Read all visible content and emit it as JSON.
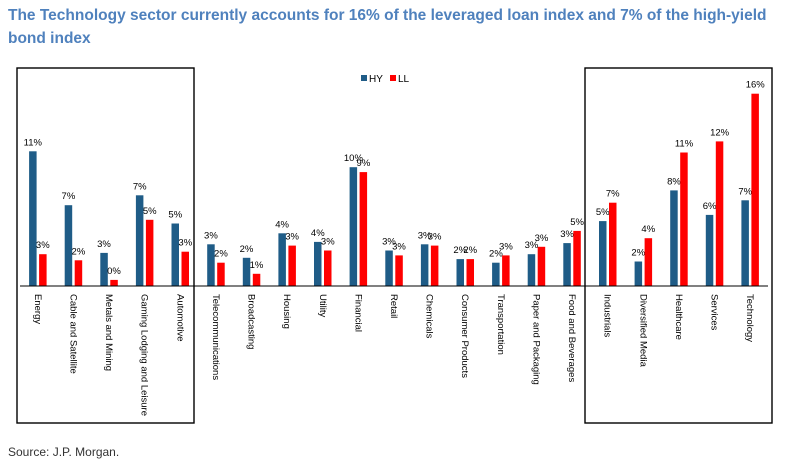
{
  "title": "The Technology sector currently accounts for 16% of the leveraged loan index and 7% of the high-yield bond index",
  "source": "Source: J.P. Morgan.",
  "colors": {
    "HY": "#1F5C87",
    "LL": "#FF0000",
    "title": "#4F81BD"
  },
  "chart_data": {
    "type": "bar",
    "title": "",
    "xlabel": "",
    "ylabel": "",
    "legend_position": "top-center",
    "grid": false,
    "categories": [
      "Energy",
      "Cable and Satellite",
      "Metals and Mining",
      "Gaming Lodging and Leisure",
      "Automotive",
      "Telecommunications",
      "Broadcasting",
      "Housing",
      "Utility",
      "Financial",
      "Retail",
      "Chemicals",
      "Consumer Products",
      "Transportation",
      "Paper and Packaging",
      "Food and Beverages",
      "Industrials",
      "Diversified Media",
      "Healthcare",
      "Services",
      "Technology"
    ],
    "series": [
      {
        "name": "HY",
        "values": [
          11,
          6.6,
          2.7,
          7.4,
          5.1,
          3.4,
          2.3,
          4.3,
          3.6,
          9.7,
          2.9,
          3.4,
          2.2,
          1.9,
          2.6,
          3.5,
          5.3,
          2.0,
          7.8,
          5.8,
          7.0
        ],
        "labels": [
          "11%",
          "7%",
          "3%",
          "7%",
          "5%",
          "3%",
          "2%",
          "4%",
          "4%",
          "10%",
          "3%",
          "3%",
          "2%",
          "2%",
          "3%",
          "3%",
          "5%",
          "2%",
          "8%",
          "6%",
          "7%"
        ]
      },
      {
        "name": "LL",
        "values": [
          2.6,
          2.1,
          0.5,
          5.4,
          2.8,
          1.9,
          1.0,
          3.3,
          2.9,
          9.3,
          2.5,
          3.3,
          2.2,
          2.5,
          3.2,
          4.5,
          6.8,
          3.9,
          10.9,
          11.8,
          15.7
        ],
        "labels": [
          "3%",
          "2%",
          "0%",
          "5%",
          "3%",
          "2%",
          "1%",
          "3%",
          "3%",
          "9%",
          "3%",
          "3%",
          "2%",
          "3%",
          "3%",
          "5%",
          "7%",
          "4%",
          "11%",
          "12%",
          "16%"
        ]
      }
    ],
    "ylim": [
      0,
      16
    ]
  }
}
